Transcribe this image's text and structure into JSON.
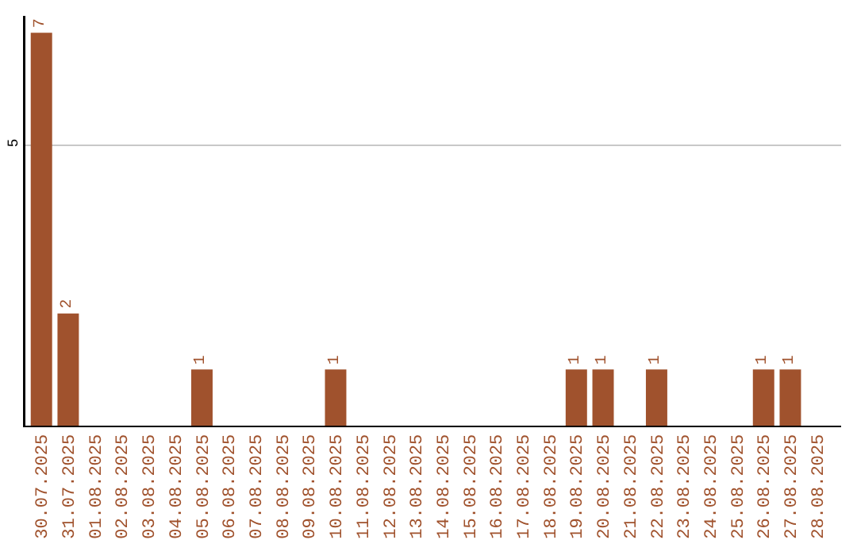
{
  "chart_data": {
    "type": "bar",
    "categories": [
      "30.07.2025",
      "31.07.2025",
      "01.08.2025",
      "02.08.2025",
      "03.08.2025",
      "04.08.2025",
      "05.08.2025",
      "06.08.2025",
      "07.08.2025",
      "08.08.2025",
      "09.08.2025",
      "10.08.2025",
      "11.08.2025",
      "12.08.2025",
      "13.08.2025",
      "14.08.2025",
      "15.08.2025",
      "16.08.2025",
      "17.08.2025",
      "18.08.2025",
      "19.08.2025",
      "20.08.2025",
      "21.08.2025",
      "22.08.2025",
      "23.08.2025",
      "24.08.2025",
      "25.08.2025",
      "26.08.2025",
      "27.08.2025",
      "28.08.2025"
    ],
    "values": [
      7,
      2,
      0,
      0,
      0,
      0,
      1,
      0,
      0,
      0,
      0,
      1,
      0,
      0,
      0,
      0,
      0,
      0,
      0,
      0,
      1,
      1,
      0,
      1,
      0,
      0,
      0,
      1,
      1,
      0
    ],
    "value_labels": [
      "7",
      "2",
      null,
      null,
      null,
      null,
      "1",
      null,
      null,
      null,
      null,
      "1",
      null,
      null,
      null,
      null,
      null,
      null,
      null,
      null,
      "1",
      "1",
      null,
      "1",
      null,
      null,
      null,
      "1",
      "1",
      null
    ],
    "color": "#a0522d",
    "ylim": [
      0,
      7.3
    ],
    "yticks": [
      5
    ],
    "grid": "y"
  }
}
